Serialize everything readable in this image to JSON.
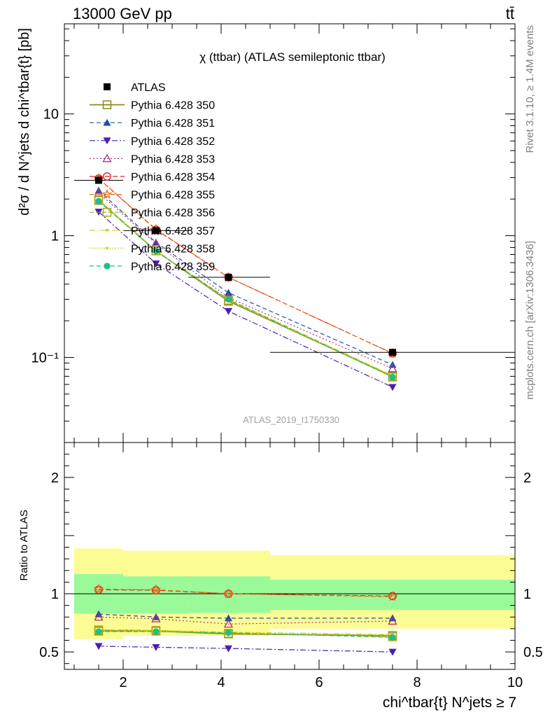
{
  "header": {
    "left_label": "13000 GeV pp",
    "right_label": "tt̄"
  },
  "side_labels": {
    "rivet": "Rivet 3.1.10, ≥ 1.4M events",
    "mcplots": "mcplots.cern.ch [arXiv:1306.3436]"
  },
  "chart_data": [
    {
      "panel": "main",
      "type": "line",
      "title": "χ (ttbar) (ATLAS semileptonic ttbar)",
      "watermark": "ATLAS_2019_I1750330",
      "ylabel": "d²σ / d N^jets d chi^tbar{t} [pb]",
      "y_scale": "log",
      "ylim": [
        0.02,
        55
      ],
      "xlim": [
        0.8,
        10
      ],
      "y_ticks": [
        {
          "value": 0.1,
          "label": "10⁻¹"
        },
        {
          "value": 1,
          "label": "1"
        },
        {
          "value": 10,
          "label": "10"
        }
      ],
      "x": [
        1.5,
        2.67,
        4.15,
        7.5
      ],
      "atlas": {
        "name": "ATLAS",
        "bins": [
          [
            1,
            2
          ],
          [
            2,
            3.33
          ],
          [
            3.33,
            5
          ],
          [
            5,
            10
          ]
        ],
        "values": [
          2.85,
          1.1,
          0.455,
          0.11
        ]
      },
      "series": [
        {
          "name": "Pythia 6.428 350",
          "values": [
            1.95,
            0.75,
            0.29,
            0.07
          ]
        },
        {
          "name": "Pythia 6.428 351",
          "values": [
            2.35,
            0.88,
            0.34,
            0.087
          ]
        },
        {
          "name": "Pythia 6.428 352",
          "values": [
            1.57,
            0.59,
            0.24,
            0.057
          ]
        },
        {
          "name": "Pythia 6.428 353",
          "values": [
            2.25,
            0.86,
            0.31,
            0.081
          ]
        },
        {
          "name": "Pythia 6.428 354",
          "values": [
            2.95,
            1.12,
            0.455,
            0.108
          ]
        },
        {
          "name": "Pythia 6.428 355",
          "values": [
            2.95,
            1.13,
            0.455,
            0.108
          ]
        },
        {
          "name": "Pythia 6.428 356",
          "values": [
            1.97,
            0.75,
            0.295,
            0.069
          ]
        },
        {
          "name": "Pythia 6.428 357",
          "values": [
            1.96,
            0.75,
            0.3,
            0.071
          ]
        },
        {
          "name": "Pythia 6.428 358",
          "values": [
            1.93,
            0.745,
            0.295,
            0.07
          ]
        },
        {
          "name": "Pythia 6.428 359",
          "values": [
            1.92,
            0.745,
            0.3,
            0.069
          ]
        }
      ]
    },
    {
      "panel": "ratio",
      "type": "line",
      "ylabel": "Ratio to ATLAS",
      "xlabel": "chi^tbar{t} N^jets ≥ 7",
      "ylim": [
        0.35,
        2.3
      ],
      "xlim": [
        0.8,
        10
      ],
      "y_ticks": [
        {
          "value": 0.5,
          "label": "0.5"
        },
        {
          "value": 1,
          "label": "1"
        },
        {
          "value": 2,
          "label": "2"
        }
      ],
      "x_ticks": [
        {
          "value": 2,
          "label": "2"
        },
        {
          "value": 4,
          "label": "4"
        },
        {
          "value": 6,
          "label": "6"
        },
        {
          "value": 8,
          "label": "8"
        },
        {
          "value": 10,
          "label": "10"
        }
      ],
      "x": [
        1.5,
        2.67,
        4.15,
        7.5
      ],
      "bands": {
        "bins": [
          [
            1,
            2
          ],
          [
            2,
            3.33
          ],
          [
            3.33,
            5
          ],
          [
            5,
            10
          ]
        ],
        "inner": [
          [
            0.83,
            1.17
          ],
          [
            0.83,
            1.15
          ],
          [
            0.835,
            1.15
          ],
          [
            0.86,
            1.12
          ]
        ],
        "outer": [
          [
            0.61,
            1.39
          ],
          [
            0.64,
            1.37
          ],
          [
            0.64,
            1.37
          ],
          [
            0.7,
            1.33
          ]
        ]
      },
      "series": [
        {
          "name": "Pythia 6.428 350",
          "values": [
            0.68,
            0.68,
            0.655,
            0.64
          ]
        },
        {
          "name": "Pythia 6.428 351",
          "values": [
            0.825,
            0.8,
            0.79,
            0.79
          ]
        },
        {
          "name": "Pythia 6.428 352",
          "values": [
            0.55,
            0.54,
            0.53,
            0.5
          ]
        },
        {
          "name": "Pythia 6.428 353",
          "values": [
            0.8,
            0.785,
            0.74,
            0.765
          ]
        },
        {
          "name": "Pythia 6.428 354",
          "values": [
            1.035,
            1.03,
            1.0,
            0.98
          ]
        },
        {
          "name": "Pythia 6.428 355",
          "values": [
            1.04,
            1.035,
            1.0,
            0.975
          ]
        },
        {
          "name": "Pythia 6.428 356",
          "values": [
            0.69,
            0.685,
            0.66,
            0.63
          ]
        },
        {
          "name": "Pythia 6.428 357",
          "values": [
            0.69,
            0.685,
            0.67,
            0.65
          ]
        },
        {
          "name": "Pythia 6.428 358",
          "values": [
            0.675,
            0.68,
            0.665,
            0.645
          ]
        },
        {
          "name": "Pythia 6.428 359",
          "values": [
            0.675,
            0.675,
            0.665,
            0.625
          ]
        }
      ]
    }
  ],
  "colors": {
    "atlas": "#000000",
    "series": [
      "#8a8a1a",
      "#1f4fa8",
      "#4a1fb0",
      "#b0307a",
      "#e0202a",
      "#e86a10",
      "#aaa820",
      "#d6cf10",
      "#c9d830",
      "#20c080"
    ],
    "band_inner": "#9afa9a",
    "band_outer": "#fcfc94"
  }
}
